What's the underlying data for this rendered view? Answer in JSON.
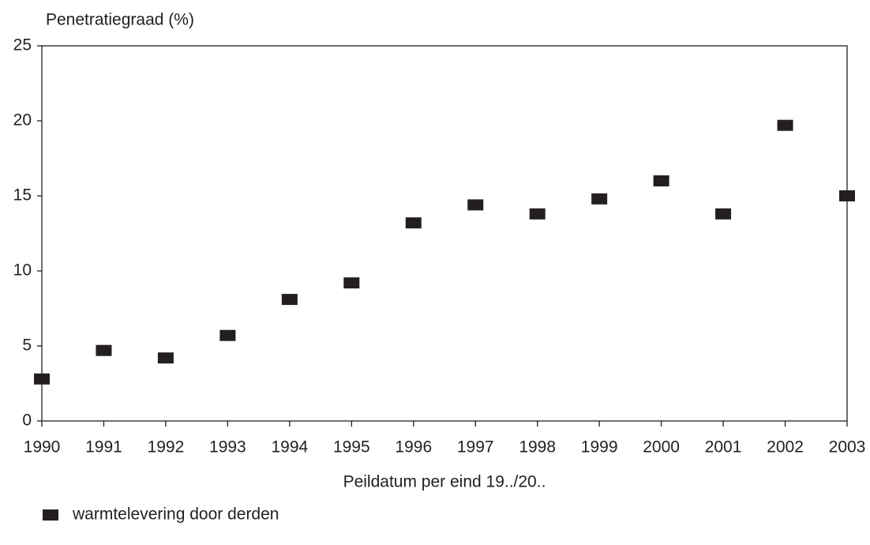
{
  "chart_data": {
    "type": "scatter",
    "y_axis_label": "Penetratiegraad (%)",
    "x_axis_label": "Peildatum per eind 19../20..",
    "x": [
      1990,
      1991,
      1992,
      1993,
      1994,
      1995,
      1996,
      1997,
      1998,
      1999,
      2000,
      2001,
      2002,
      2003
    ],
    "series": [
      {
        "name": "warmtelevering door derden",
        "color": "#231f20",
        "values": [
          2.8,
          4.7,
          4.2,
          5.7,
          8.1,
          9.2,
          13.2,
          14.4,
          13.8,
          14.8,
          16.0,
          13.8,
          19.7,
          15.0
        ]
      }
    ],
    "xlim": [
      1990,
      2003
    ],
    "xticks": [
      1990,
      1991,
      1992,
      1993,
      1994,
      1995,
      1996,
      1997,
      1998,
      1999,
      2000,
      2001,
      2002,
      2003
    ],
    "ylim": [
      0,
      25
    ],
    "yticks": [
      0,
      5,
      10,
      15,
      20,
      25
    ],
    "grid": false,
    "legend": "bottom-left"
  }
}
